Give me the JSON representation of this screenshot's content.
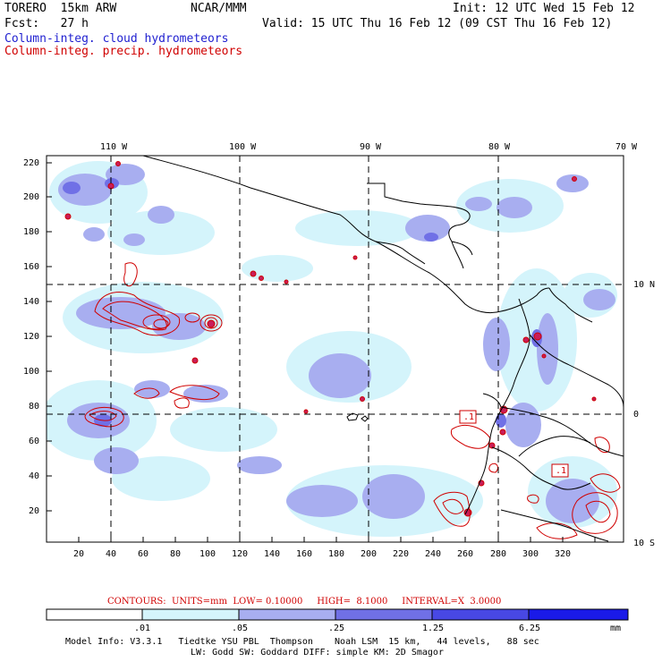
{
  "header": {
    "model": "TORERO  15km ARW",
    "org": "NCAR/MMM",
    "init": "Init: 12 UTC Wed 15 Feb 12",
    "fcst": "Fcst:   27 h",
    "valid": "Valid: 15 UTC Thu 16 Feb 12 (09 CST Thu 16 Feb 12)",
    "field1": "Column-integ. cloud hydrometeors",
    "field2": "Column-integ. precip. hydrometeors"
  },
  "map": {
    "lon_labels": [
      "110 W",
      "100 W",
      "90 W",
      "80 W",
      "70 W"
    ],
    "lat_labels_right": [
      "10 N",
      "0",
      "10 S"
    ],
    "y_ticks": [
      "220",
      "200",
      "180",
      "160",
      "140",
      "120",
      "100",
      "80",
      "60",
      "40",
      "20"
    ],
    "x_ticks": [
      "20",
      "40",
      "60",
      "80",
      "100",
      "120",
      "140",
      "160",
      "180",
      "200",
      "220",
      "240",
      "260",
      "280",
      "300",
      "320"
    ],
    "contour_labels": [
      ".1",
      ".1"
    ]
  },
  "contours_info": {
    "text": "CONTOURS:  UNITS=mm  LOW= 0.10000     HIGH=  8.1000     INTERVAL=X  3.0000"
  },
  "legend": {
    "labels": [
      ".01",
      ".05",
      ".25",
      "1.25",
      "6.25"
    ],
    "unit": "mm",
    "colors": [
      "#ffffff",
      "#d4f4fb",
      "#a8aef0",
      "#7070e6",
      "#4848e4",
      "#1a1ae8"
    ]
  },
  "footer": {
    "line1": "Model Info: V3.3.1   Tiedtke YSU PBL  Thompson    Noah LSM  15 km,   44 levels,   88 sec",
    "line2": "LW: Godd SW: Goddard DIFF: simple KM: 2D Smagor"
  }
}
